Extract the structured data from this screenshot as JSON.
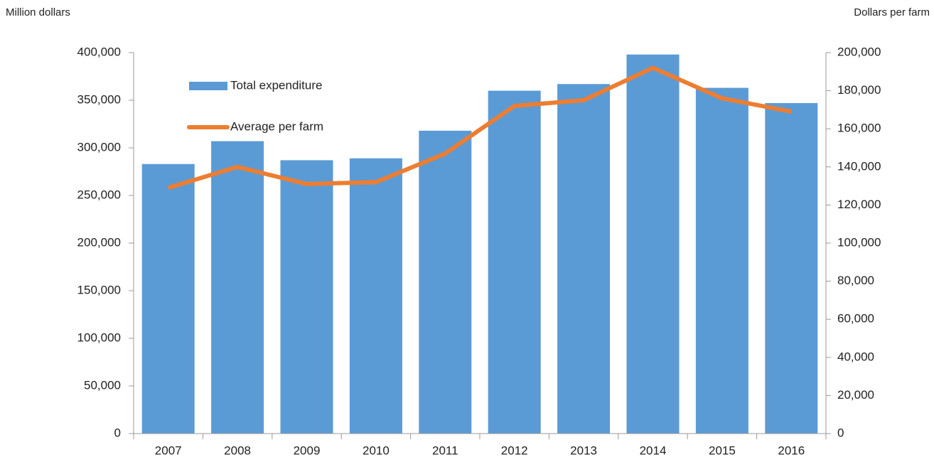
{
  "chart_data": {
    "type": "bar",
    "y_label": "Million dollars",
    "y2_label": "Dollars per farm",
    "categories": [
      "2007",
      "2008",
      "2009",
      "2010",
      "2011",
      "2012",
      "2013",
      "2014",
      "2015",
      "2016"
    ],
    "series": [
      {
        "name": "Total expenditure",
        "type": "bar",
        "color": "#5b9bd5",
        "axis": "y",
        "values": [
          283000,
          307000,
          287000,
          289000,
          318000,
          360000,
          367000,
          398000,
          363000,
          347000
        ]
      },
      {
        "name": "Average per farm",
        "type": "line",
        "color": "#ed7d31",
        "axis": "y2",
        "values": [
          129000,
          140000,
          131000,
          132000,
          147000,
          172000,
          175000,
          192000,
          176000,
          169000
        ]
      }
    ],
    "ylim": [
      0,
      400000
    ],
    "yticks": [
      0,
      {
        "value": 50000,
        "label": "50,000"
      },
      {
        "value": 100000,
        "label": "100,000"
      },
      {
        "value": 150000,
        "label": "150,000"
      },
      {
        "value": 200000,
        "label": "200,000"
      },
      {
        "value": 250000,
        "label": "250,000"
      },
      {
        "value": 300000,
        "label": "300,000"
      },
      {
        "value": 350000,
        "label": "350,000"
      },
      {
        "value": 400000,
        "label": "400,000"
      }
    ],
    "y2lim": [
      0,
      200000
    ],
    "y2ticks": [
      0,
      {
        "value": 20000,
        "label": "20,000"
      },
      {
        "value": 40000,
        "label": "40,000"
      },
      {
        "value": 60000,
        "label": "60,000"
      },
      {
        "value": 80000,
        "label": "80,000"
      },
      {
        "value": 100000,
        "label": "100,000"
      },
      {
        "value": 120000,
        "label": "120,000"
      },
      {
        "value": 140000,
        "label": "140,000"
      },
      {
        "value": 160000,
        "label": "160,000"
      },
      {
        "value": 180000,
        "label": "180,000"
      },
      {
        "value": 200000,
        "label": "200,000"
      }
    ],
    "legend": "top-left",
    "grid": false
  }
}
